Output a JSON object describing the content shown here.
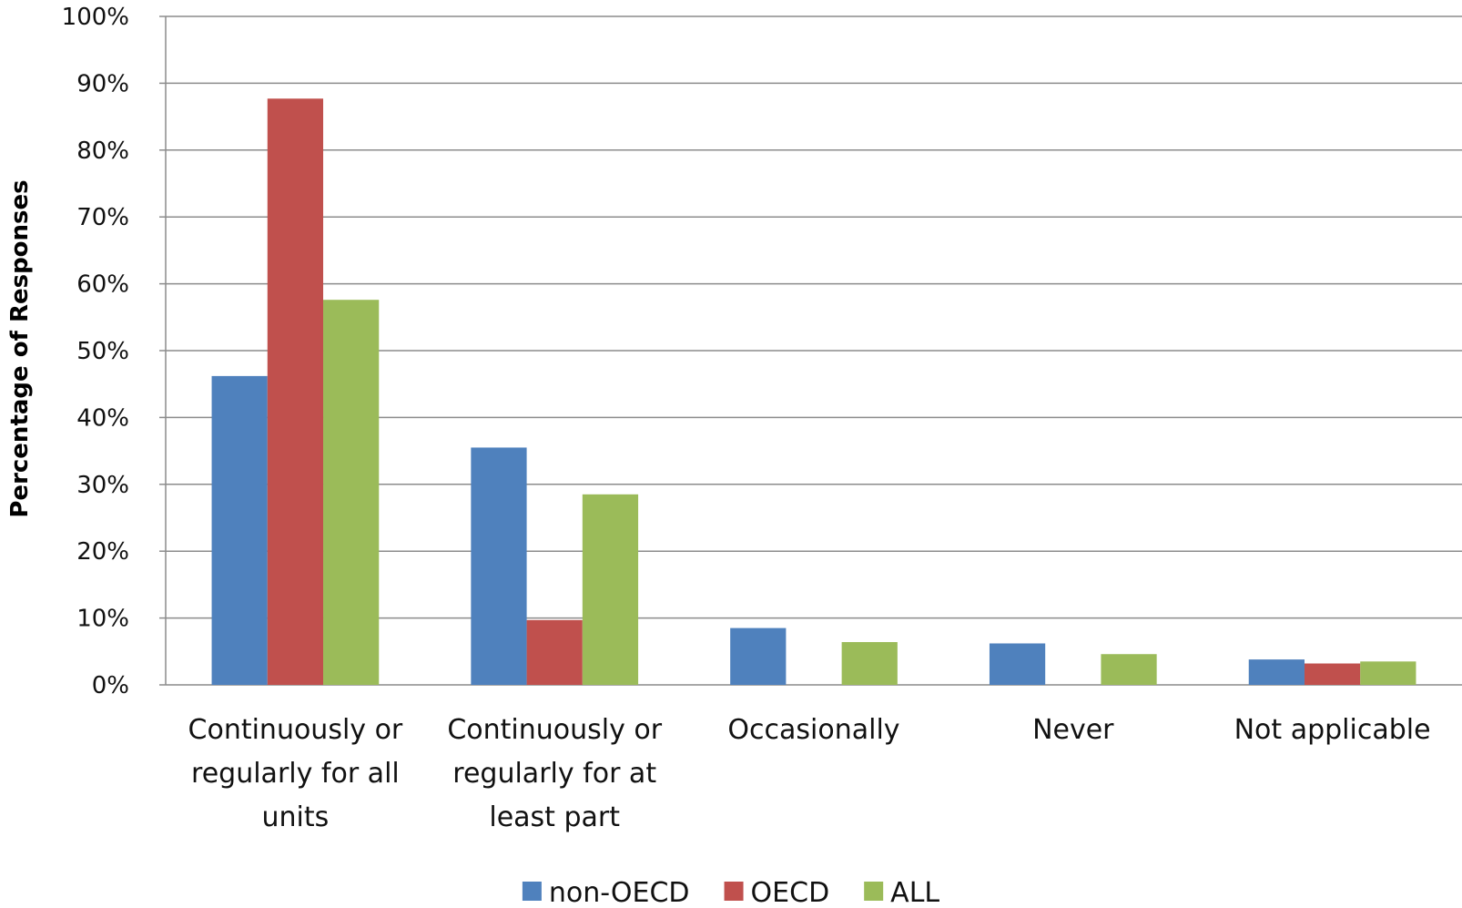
{
  "chart_data": {
    "type": "bar",
    "title": "",
    "xlabel": "",
    "ylabel": "Percentage of Responses",
    "ylim": [
      0,
      100
    ],
    "yticks": [
      "0%",
      "10%",
      "20%",
      "30%",
      "40%",
      "50%",
      "60%",
      "70%",
      "80%",
      "90%",
      "100%"
    ],
    "grid": true,
    "legend_position": "bottom",
    "categories": [
      [
        "Continuously or",
        "regularly for all",
        "units"
      ],
      [
        "Continuously or",
        "regularly for at",
        "least part"
      ],
      [
        "Occasionally"
      ],
      [
        "Never"
      ],
      [
        "Not applicable"
      ]
    ],
    "series": [
      {
        "name": "non-OECD",
        "color": "#4f81bd",
        "values": [
          46.2,
          35.5,
          8.5,
          6.2,
          3.8
        ]
      },
      {
        "name": "OECD",
        "color": "#c0504d",
        "values": [
          87.7,
          9.7,
          0,
          0,
          3.2
        ]
      },
      {
        "name": "ALL",
        "color": "#9bbb59",
        "values": [
          57.6,
          28.5,
          6.4,
          4.6,
          3.5
        ]
      }
    ]
  }
}
